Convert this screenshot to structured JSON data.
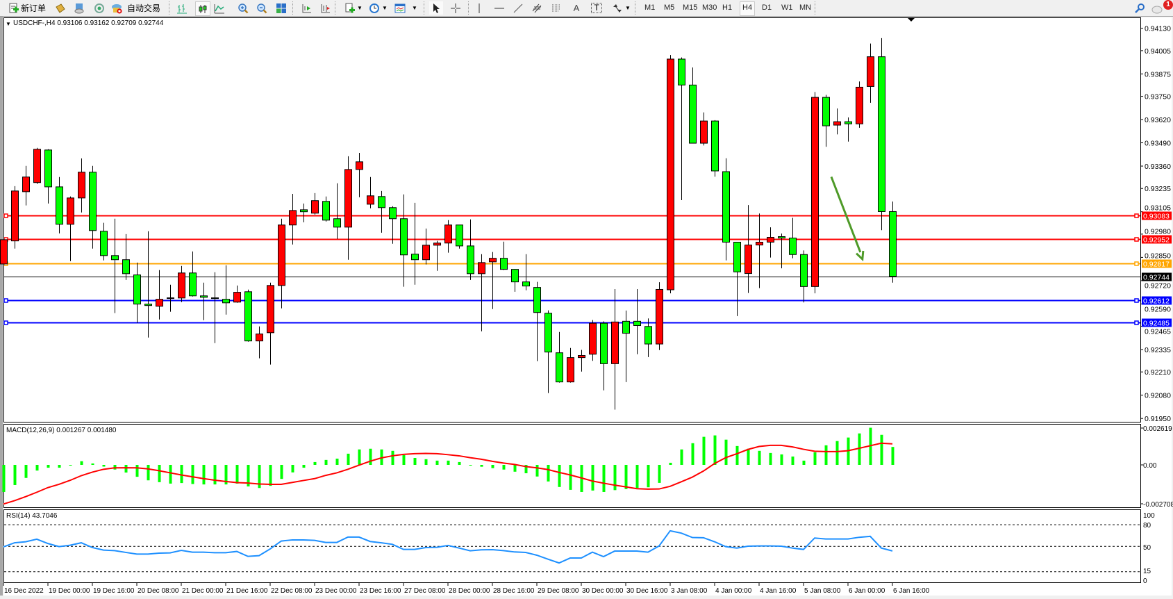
{
  "toolbar": {
    "new_order_label": "新订单",
    "auto_trading_label": "自动交易",
    "timeframes": [
      "M1",
      "M5",
      "M15",
      "M30",
      "H1",
      "H4",
      "D1",
      "W1",
      "MN"
    ],
    "active_timeframe": "H4",
    "text_tool_label": "A",
    "label_tool_label": "T",
    "notification_count": "1",
    "icons": [
      "new-order-icon",
      "market-watch-icon",
      "navigator-icon",
      "signals-icon",
      "auto-trading-icon",
      "bar-chart-icon",
      "candlestick-icon",
      "line-chart-icon",
      "zoom-in-icon",
      "zoom-out-icon",
      "tile-windows-icon",
      "auto-scroll-icon",
      "chart-shift-icon",
      "indicators-icon",
      "periods-icon",
      "templates-icon",
      "cursor-icon",
      "crosshair-icon",
      "vertical-line-icon",
      "horizontal-line-icon",
      "trendline-icon",
      "equidistant-channel-icon",
      "fibonacci-icon",
      "text-icon",
      "text-label-icon",
      "arrows-icon",
      "search-icon",
      "chat-icon"
    ]
  },
  "chart": {
    "header": "USDCHF-,H4  0.93106 0.93162 0.92709 0.92744",
    "macd_label": "MACD(12,26,9) 0.001267 0.001480",
    "rsi_label": "RSI(14) 43.7046",
    "colors": {
      "bull": "#FF0000",
      "bear": "#00FF00",
      "macd_hist": "#00FF00",
      "macd_signal": "#FF0000",
      "rsi": "#1E90FF",
      "arrow": "#4E9A28"
    }
  },
  "chart_data": {
    "type": "candlestick",
    "symbol": "USDCHF-",
    "timeframe": "H4",
    "price_axis_ticks": [
      "0.94130",
      "0.94005",
      "0.93875",
      "0.93750",
      "0.93620",
      "0.93490",
      "0.93360",
      "0.93235",
      "0.93105",
      "0.92980",
      "0.92850",
      "0.92720",
      "0.92590",
      "0.92465",
      "0.92335",
      "0.92210",
      "0.92080",
      "0.91950"
    ],
    "ylim": [
      0.9189,
      0.9424
    ],
    "time_labels": [
      "16 Dec 2022",
      "19 Dec 00:00",
      "19 Dec 16:00",
      "20 Dec 08:00",
      "21 Dec 00:00",
      "21 Dec 16:00",
      "22 Dec 08:00",
      "23 Dec 00:00",
      "23 Dec 16:00",
      "27 Dec 08:00",
      "28 Dec 00:00",
      "28 Dec 16:00",
      "29 Dec 08:00",
      "30 Dec 00:00",
      "30 Dec 16:00",
      "3 Jan 08:00",
      "4 Jan 00:00",
      "4 Jan 16:00",
      "5 Jan 08:00",
      "6 Jan 00:00",
      "6 Jan 16:00"
    ],
    "time_label_every_bars": 4,
    "ohlc": [
      [
        0.92813,
        0.93057,
        0.92669,
        0.92949
      ],
      [
        0.92942,
        0.93248,
        0.92899,
        0.93221
      ],
      [
        0.93217,
        0.93361,
        0.9314,
        0.93299
      ],
      [
        0.93268,
        0.93462,
        0.9326,
        0.93454
      ],
      [
        0.9345,
        0.93454,
        0.93151,
        0.93244
      ],
      [
        0.93244,
        0.93299,
        0.92984,
        0.93035
      ],
      [
        0.93035,
        0.9319,
        0.92829,
        0.93182
      ],
      [
        0.93182,
        0.93403,
        0.93101,
        0.93326
      ],
      [
        0.93326,
        0.93361,
        0.92899,
        0.93
      ],
      [
        0.92996,
        0.93043,
        0.92833,
        0.9286
      ],
      [
        0.9286,
        0.93066,
        0.92539,
        0.92837
      ],
      [
        0.92837,
        0.9298,
        0.92724,
        0.92759
      ],
      [
        0.92752,
        0.92821,
        0.92484,
        0.92589
      ],
      [
        0.92589,
        0.92996,
        0.92402,
        0.92581
      ],
      [
        0.92577,
        0.92779,
        0.92503,
        0.92616
      ],
      [
        0.9262,
        0.92697,
        0.92546,
        0.92624
      ],
      [
        0.92623,
        0.92802,
        0.926,
        0.92763
      ],
      [
        0.92763,
        0.92883,
        0.92631,
        0.92635
      ],
      [
        0.92635,
        0.92709,
        0.92499,
        0.92627
      ],
      [
        0.92624,
        0.92767,
        0.92371,
        0.9262
      ],
      [
        0.92616,
        0.92806,
        0.9253,
        0.92596
      ],
      [
        0.926,
        0.92693,
        0.92596,
        0.92655
      ],
      [
        0.92658,
        0.9267,
        0.92379,
        0.92383
      ],
      [
        0.92383,
        0.92464,
        0.92286,
        0.92422
      ],
      [
        0.92429,
        0.92709,
        0.92251,
        0.92693
      ],
      [
        0.92693,
        0.93066,
        0.92565,
        0.93031
      ],
      [
        0.93031,
        0.93205,
        0.92922,
        0.93112
      ],
      [
        0.93116,
        0.93151,
        0.93046,
        0.93105
      ],
      [
        0.93097,
        0.93209,
        0.93089,
        0.93167
      ],
      [
        0.93163,
        0.9319,
        0.9305,
        0.93058
      ],
      [
        0.93066,
        0.93264,
        0.92953,
        0.93019
      ],
      [
        0.93019,
        0.93415,
        0.92837,
        0.93341
      ],
      [
        0.93341,
        0.93434,
        0.93186,
        0.93384
      ],
      [
        0.93147,
        0.93299,
        0.93124,
        0.93194
      ],
      [
        0.9319,
        0.93221,
        0.92988,
        0.93128
      ],
      [
        0.93128,
        0.93136,
        0.92926,
        0.93066
      ],
      [
        0.93066,
        0.93202,
        0.92686,
        0.92864
      ],
      [
        0.92868,
        0.93155,
        0.92697,
        0.92837
      ],
      [
        0.92837,
        0.93011,
        0.9281,
        0.92918
      ],
      [
        0.92918,
        0.92942,
        0.92775,
        0.9293
      ],
      [
        0.9293,
        0.93058,
        0.92876,
        0.93031
      ],
      [
        0.93031,
        0.93031,
        0.92899,
        0.92914
      ],
      [
        0.92914,
        0.93062,
        0.92724,
        0.92759
      ],
      [
        0.92759,
        0.92868,
        0.92437,
        0.92821
      ],
      [
        0.92825,
        0.9288,
        0.92561,
        0.92845
      ],
      [
        0.92845,
        0.92938,
        0.92779,
        0.92783
      ],
      [
        0.92783,
        0.92785,
        0.92658,
        0.92713
      ],
      [
        0.92713,
        0.92868,
        0.92666,
        0.9269
      ],
      [
        0.92682,
        0.92713,
        0.9227,
        0.92542
      ],
      [
        0.92538,
        0.92554,
        0.92092,
        0.92321
      ],
      [
        0.92317,
        0.92433,
        0.9215,
        0.92154
      ],
      [
        0.92154,
        0.92344,
        0.9215,
        0.9229
      ],
      [
        0.9229,
        0.92333,
        0.92212,
        0.92302
      ],
      [
        0.92309,
        0.925,
        0.92272,
        0.92482
      ],
      [
        0.92482,
        0.92493,
        0.92107,
        0.92256
      ],
      [
        0.92256,
        0.92673,
        0.91999,
        0.92489
      ],
      [
        0.92493,
        0.92553,
        0.92153,
        0.92426
      ],
      [
        0.92493,
        0.92673,
        0.92309,
        0.92469
      ],
      [
        0.92464,
        0.92509,
        0.92293,
        0.92366
      ],
      [
        0.92366,
        0.92711,
        0.92332,
        0.92671
      ],
      [
        0.92669,
        0.93981,
        0.92649,
        0.93958
      ],
      [
        0.93958,
        0.93967,
        0.9317,
        0.93813
      ],
      [
        0.93813,
        0.93911,
        0.93488,
        0.93488
      ],
      [
        0.93488,
        0.9366,
        0.93475,
        0.93612
      ],
      [
        0.93612,
        0.93617,
        0.93301,
        0.93333
      ],
      [
        0.93329,
        0.93404,
        0.92833,
        0.92935
      ],
      [
        0.92935,
        0.92935,
        0.92522,
        0.92769
      ],
      [
        0.9276,
        0.93142,
        0.92651,
        0.92919
      ],
      [
        0.92919,
        0.93095,
        0.92678,
        0.92935
      ],
      [
        0.92935,
        0.93018,
        0.92849,
        0.92962
      ],
      [
        0.92966,
        0.92983,
        0.92789,
        0.92958
      ],
      [
        0.92958,
        0.93071,
        0.92845,
        0.92866
      ],
      [
        0.92866,
        0.92889,
        0.92598,
        0.92687
      ],
      [
        0.92687,
        0.93774,
        0.92649,
        0.93744
      ],
      [
        0.93744,
        0.93758,
        0.93468,
        0.93585
      ],
      [
        0.93589,
        0.93682,
        0.93537,
        0.93608
      ],
      [
        0.93608,
        0.93632,
        0.93497,
        0.93596
      ],
      [
        0.93596,
        0.93833,
        0.93574,
        0.93801
      ],
      [
        0.93805,
        0.94045,
        0.93714,
        0.93971
      ],
      [
        0.93971,
        0.94075,
        0.93002,
        0.93106
      ],
      [
        0.93106,
        0.93162,
        0.92709,
        0.92744
      ]
    ],
    "levels": [
      {
        "price": "0.93083",
        "color": "#FF0000"
      },
      {
        "price": "0.92952",
        "color": "#FF0000"
      },
      {
        "price": "0.92817",
        "color": "#FFA500"
      },
      {
        "price": "0.92744",
        "color": "#000000"
      },
      {
        "price": "0.92612",
        "color": "#0000FF"
      },
      {
        "price": "0.92485",
        "color": "#0000FF"
      }
    ],
    "arrow": {
      "from": [
        74.5,
        0.933
      ],
      "to": [
        77.3,
        0.9284
      ]
    },
    "macd": {
      "ticks": [
        "0.002619",
        "0.00",
        "-0.002708"
      ],
      "ylim": [
        -0.002708,
        0.002619
      ],
      "histogram": [
        -0.00191,
        -0.00142,
        -0.00092,
        -0.0004,
        -0.0002,
        -0.0002,
        -3e-05,
        0.00026,
        0.0001,
        -0.00012,
        -0.00033,
        -0.00054,
        -0.00084,
        -0.00109,
        -0.00122,
        -0.00132,
        -0.00128,
        -0.00135,
        -0.00138,
        -0.00138,
        -0.00138,
        -0.00132,
        -0.00152,
        -0.00163,
        -0.00148,
        -0.00099,
        -0.00053,
        -0.0002,
        0.0002,
        0.00035,
        0.00044,
        0.00079,
        0.00109,
        0.00114,
        0.00109,
        0.00099,
        0.00069,
        0.00049,
        0.0004,
        0.0003,
        0.0003,
        0.0002,
        -2e-05,
        -0.00013,
        -0.00023,
        -0.00033,
        -0.00048,
        -0.00059,
        -0.00082,
        -0.00117,
        -0.00156,
        -0.00176,
        -0.00191,
        -0.00181,
        -0.00191,
        -0.00178,
        -0.00171,
        -0.00163,
        -0.00158,
        -0.00127,
        0.00015,
        0.00109,
        0.00153,
        0.00198,
        0.00208,
        0.00178,
        0.00133,
        0.00114,
        0.00099,
        0.00084,
        0.00074,
        0.00059,
        0.0003,
        0.00089,
        0.00138,
        0.00168,
        0.00193,
        0.00222,
        0.00262,
        0.00212,
        0.001267
      ],
      "signal": [
        -0.00276,
        -0.00252,
        -0.00224,
        -0.00193,
        -0.0016,
        -0.00137,
        -0.00109,
        -0.00076,
        -0.00051,
        -0.00031,
        -0.00021,
        -0.0002,
        -0.00021,
        -0.00028,
        -0.00041,
        -0.00056,
        -0.00071,
        -0.00084,
        -0.00097,
        -0.00108,
        -0.00117,
        -0.00125,
        -0.00128,
        -0.00135,
        -0.00137,
        -0.00137,
        -0.00124,
        -0.0011,
        -0.00097,
        -0.00074,
        -0.00056,
        -0.00031,
        -2e-05,
        0.00026,
        0.00049,
        0.00064,
        0.00074,
        0.00079,
        0.00081,
        0.00079,
        0.00072,
        0.00064,
        0.00051,
        0.0004,
        0.00025,
        0.00013,
        3e-05,
        -0.00012,
        -0.00021,
        -0.00033,
        -0.00053,
        -0.00071,
        -0.00092,
        -0.00114,
        -0.00129,
        -0.00143,
        -0.00155,
        -0.00168,
        -0.00171,
        -0.0017,
        -0.00151,
        -0.00119,
        -0.00086,
        -0.00043,
        0.0001,
        0.00051,
        0.00079,
        0.00109,
        0.0013,
        0.00138,
        0.00138,
        0.00127,
        0.0011,
        0.00096,
        0.00094,
        0.00094,
        0.001,
        0.00117,
        0.00135,
        0.00153,
        0.00148
      ]
    },
    "rsi": {
      "ticks": [
        "100",
        "80",
        "50",
        "15",
        "0"
      ],
      "levels": [
        80,
        50,
        15
      ],
      "values": [
        49.4,
        55,
        56.4,
        60,
        54,
        49.7,
        51.6,
        55,
        48.4,
        44.9,
        44.2,
        41.7,
        39.4,
        39.4,
        40.7,
        41,
        44.5,
        42,
        42,
        41.3,
        41.3,
        43,
        36.2,
        37.2,
        46.5,
        57.4,
        59,
        59,
        58.3,
        55.5,
        55.5,
        62.9,
        62.9,
        56.8,
        55,
        52.9,
        45.8,
        45.8,
        48.4,
        48.7,
        51.3,
        47.7,
        43.9,
        45.2,
        45.5,
        44.2,
        42.3,
        41.6,
        37.8,
        32.3,
        27.1,
        33.9,
        33.9,
        42,
        35.8,
        43.5,
        43.5,
        43.5,
        42,
        50.6,
        71.6,
        68.4,
        62.3,
        62,
        56.4,
        49.7,
        47.7,
        50.3,
        50.6,
        50.6,
        50.3,
        47.7,
        45.8,
        61.6,
        60.3,
        60.3,
        60.3,
        62.6,
        63.9,
        47.7,
        43.7
      ]
    }
  }
}
